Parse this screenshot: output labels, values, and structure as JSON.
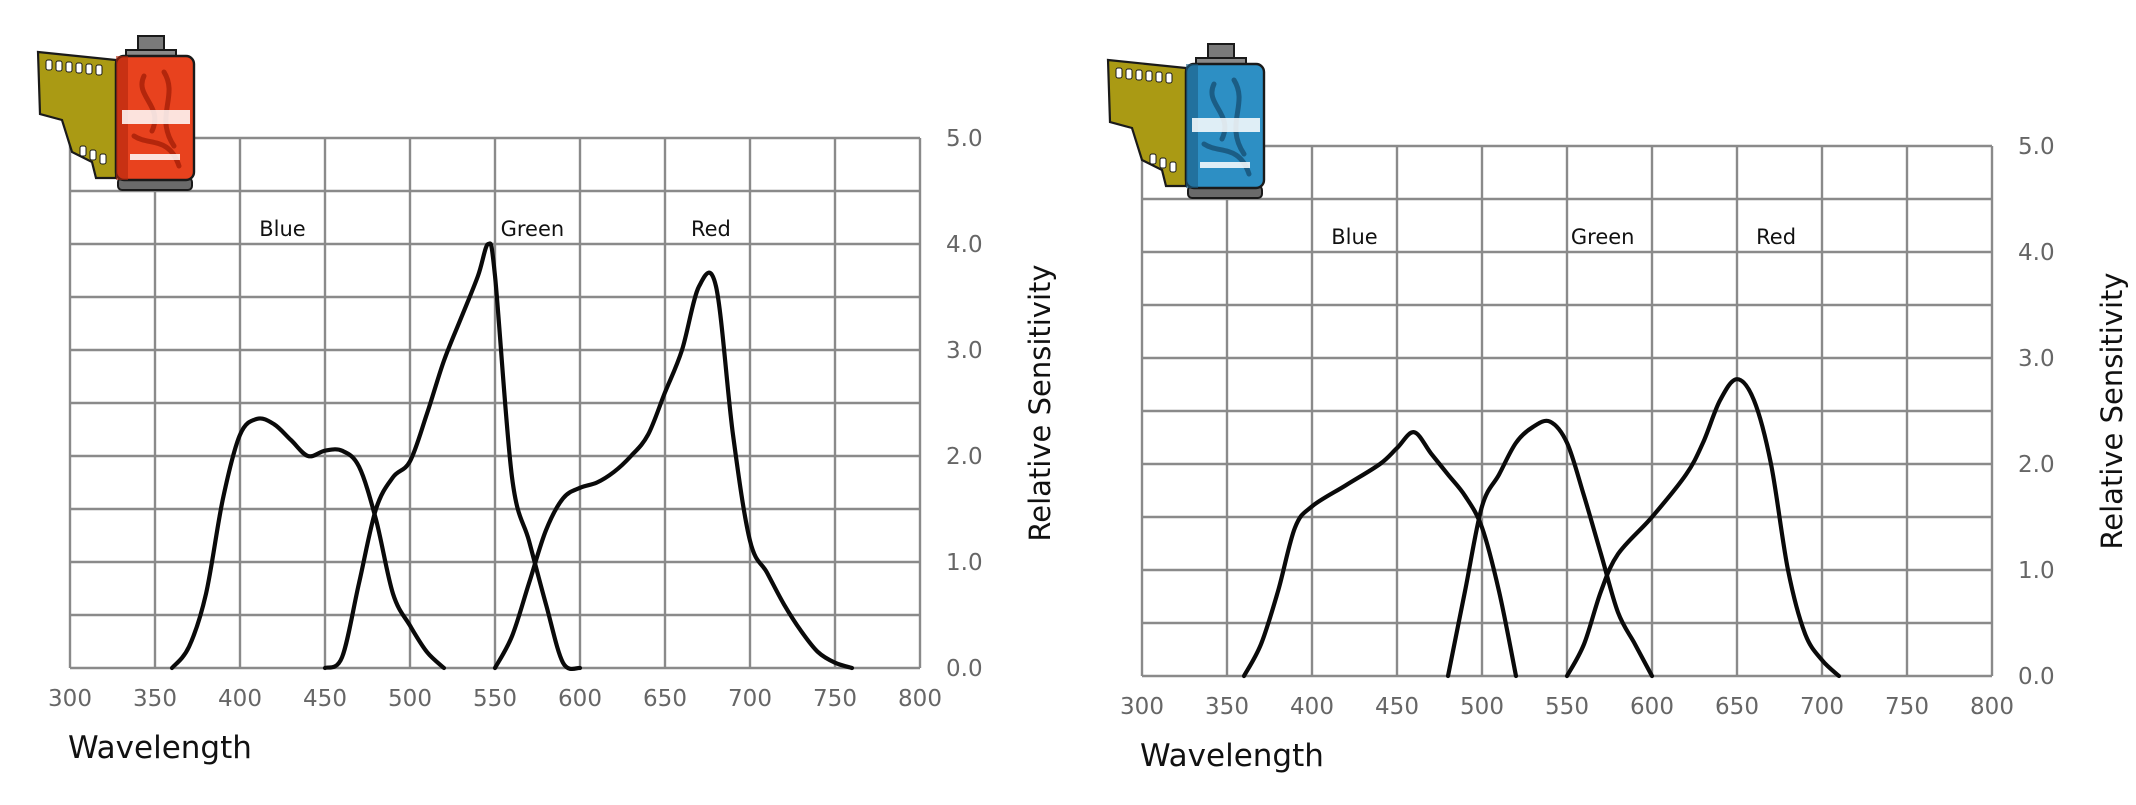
{
  "chart_data": [
    {
      "type": "line",
      "xlabel": "Wavelength",
      "ylabel": "Relative Sensitivity",
      "xlim": [
        300,
        800
      ],
      "ylim": [
        0,
        5
      ],
      "x_ticks": [
        "300",
        "350",
        "400",
        "450",
        "500",
        "550",
        "600",
        "650",
        "700",
        "750",
        "800"
      ],
      "y_ticks": [
        "0.0",
        "1.0",
        "2.0",
        "3.0",
        "4.0",
        "5.0"
      ],
      "grid": true,
      "band_labels": [
        {
          "text": "Blue",
          "x": 425
        },
        {
          "text": "Green",
          "x": 572
        },
        {
          "text": "Red",
          "x": 677
        }
      ],
      "icon": "film-canister-red-icon",
      "series": [
        {
          "values": [
            [
              360,
              0
            ],
            [
              370,
              0.2
            ],
            [
              380,
              0.7
            ],
            [
              390,
              1.6
            ],
            [
              400,
              2.2
            ],
            [
              410,
              2.35
            ],
            [
              420,
              2.3
            ],
            [
              430,
              2.15
            ],
            [
              440,
              2.0
            ],
            [
              450,
              2.05
            ],
            [
              460,
              2.05
            ],
            [
              470,
              1.9
            ],
            [
              480,
              1.4
            ],
            [
              490,
              0.7
            ],
            [
              500,
              0.4
            ],
            [
              510,
              0.15
            ],
            [
              520,
              0
            ]
          ]
        },
        {
          "values": [
            [
              450,
              0
            ],
            [
              460,
              0.1
            ],
            [
              470,
              0.8
            ],
            [
              480,
              1.5
            ],
            [
              490,
              1.8
            ],
            [
              500,
              1.95
            ],
            [
              510,
              2.4
            ],
            [
              520,
              2.9
            ],
            [
              530,
              3.3
            ],
            [
              540,
              3.7
            ],
            [
              546,
              4.0
            ],
            [
              550,
              3.7
            ],
            [
              560,
              1.8
            ],
            [
              570,
              1.2
            ],
            [
              580,
              0.6
            ],
            [
              590,
              0.05
            ],
            [
              600,
              0
            ]
          ]
        },
        {
          "values": [
            [
              550,
              0
            ],
            [
              560,
              0.3
            ],
            [
              570,
              0.8
            ],
            [
              580,
              1.3
            ],
            [
              590,
              1.6
            ],
            [
              600,
              1.7
            ],
            [
              610,
              1.75
            ],
            [
              620,
              1.85
            ],
            [
              630,
              2.0
            ],
            [
              640,
              2.2
            ],
            [
              650,
              2.6
            ],
            [
              660,
              3.0
            ],
            [
              670,
              3.6
            ],
            [
              680,
              3.6
            ],
            [
              690,
              2.2
            ],
            [
              700,
              1.2
            ],
            [
              710,
              0.9
            ],
            [
              720,
              0.6
            ],
            [
              730,
              0.35
            ],
            [
              740,
              0.15
            ],
            [
              750,
              0.05
            ],
            [
              760,
              0
            ]
          ]
        }
      ]
    },
    {
      "type": "line",
      "xlabel": "Wavelength",
      "ylabel": "Relative Sensitivity",
      "xlim": [
        300,
        800
      ],
      "ylim": [
        0,
        5
      ],
      "x_ticks": [
        "300",
        "350",
        "400",
        "450",
        "500",
        "550",
        "600",
        "650",
        "700",
        "750",
        "800"
      ],
      "y_ticks": [
        "0.0",
        "1.0",
        "2.0",
        "3.0",
        "4.0",
        "5.0"
      ],
      "grid": true,
      "band_labels": [
        {
          "text": "Blue",
          "x": 425
        },
        {
          "text": "Green",
          "x": 571
        },
        {
          "text": "Red",
          "x": 673
        }
      ],
      "icon": "film-canister-blue-icon",
      "series": [
        {
          "values": [
            [
              360,
              0
            ],
            [
              370,
              0.3
            ],
            [
              380,
              0.8
            ],
            [
              390,
              1.4
            ],
            [
              400,
              1.6
            ],
            [
              420,
              1.8
            ],
            [
              440,
              2.0
            ],
            [
              450,
              2.15
            ],
            [
              460,
              2.3
            ],
            [
              470,
              2.1
            ],
            [
              480,
              1.9
            ],
            [
              490,
              1.7
            ],
            [
              500,
              1.4
            ],
            [
              510,
              0.8
            ],
            [
              520,
              0
            ]
          ]
        },
        {
          "values": [
            [
              480,
              0
            ],
            [
              490,
              0.8
            ],
            [
              500,
              1.6
            ],
            [
              510,
              1.9
            ],
            [
              520,
              2.2
            ],
            [
              530,
              2.35
            ],
            [
              540,
              2.4
            ],
            [
              550,
              2.2
            ],
            [
              560,
              1.7
            ],
            [
              570,
              1.15
            ],
            [
              580,
              0.6
            ],
            [
              590,
              0.3
            ],
            [
              600,
              0
            ]
          ]
        },
        {
          "values": [
            [
              550,
              0
            ],
            [
              560,
              0.3
            ],
            [
              570,
              0.8
            ],
            [
              580,
              1.15
            ],
            [
              600,
              1.5
            ],
            [
              620,
              1.9
            ],
            [
              630,
              2.2
            ],
            [
              640,
              2.6
            ],
            [
              650,
              2.8
            ],
            [
              660,
              2.6
            ],
            [
              670,
              2.0
            ],
            [
              680,
              1.0
            ],
            [
              690,
              0.4
            ],
            [
              700,
              0.15
            ],
            [
              710,
              0
            ]
          ]
        }
      ]
    }
  ]
}
